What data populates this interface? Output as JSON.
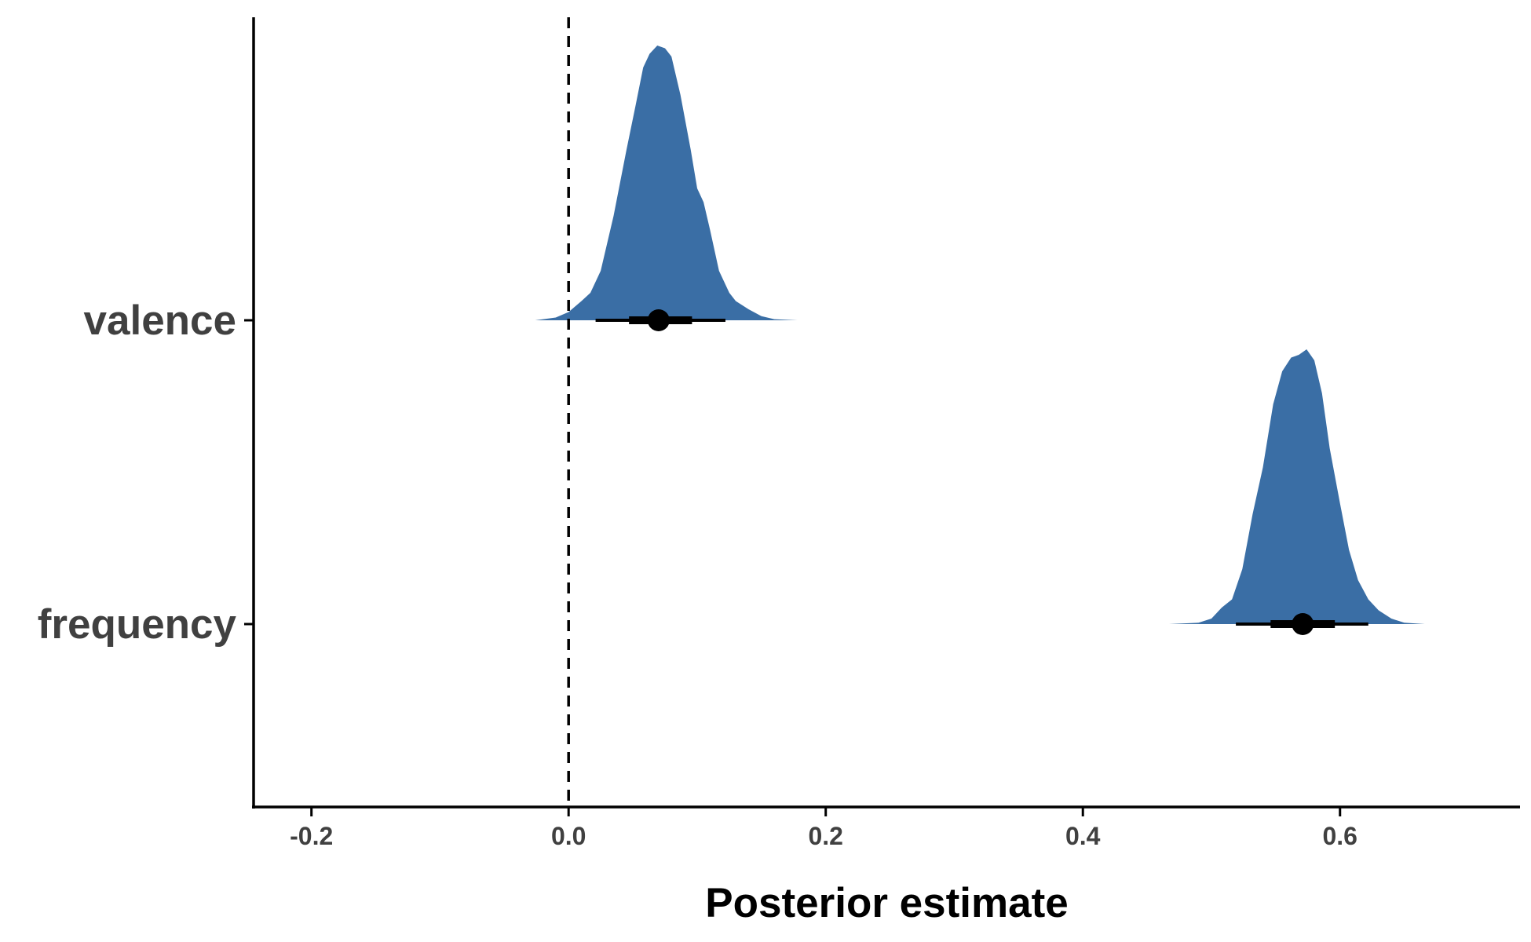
{
  "chart_data": {
    "type": "area",
    "subtype": "posterior-halfeye",
    "xlabel": "Posterior estimate",
    "ylabel": "",
    "xlim": [
      -0.245,
      0.74
    ],
    "x_ticks": [
      -0.2,
      0.0,
      0.2,
      0.4,
      0.6
    ],
    "x_tick_labels": [
      "-0.2",
      "0.0",
      "0.2",
      "0.4",
      "0.6"
    ],
    "categories": [
      "valence",
      "frequency"
    ],
    "reference_line": {
      "x": 0,
      "style": "dashed"
    },
    "grid": false,
    "legend": "none",
    "fill_color": "#3A6EA5",
    "point_color": "#000000",
    "series": [
      {
        "category": "valence",
        "median": 0.07,
        "interval_66": [
          0.047,
          0.096
        ],
        "interval_95": [
          0.021,
          0.122
        ],
        "density": [
          [
            -0.026,
            0.0
          ],
          [
            -0.01,
            0.01
          ],
          [
            0.0,
            0.03
          ],
          [
            0.01,
            0.07
          ],
          [
            0.017,
            0.1
          ],
          [
            0.025,
            0.18
          ],
          [
            0.035,
            0.38
          ],
          [
            0.045,
            0.62
          ],
          [
            0.052,
            0.78
          ],
          [
            0.058,
            0.92
          ],
          [
            0.063,
            0.97
          ],
          [
            0.069,
            1.0
          ],
          [
            0.075,
            0.99
          ],
          [
            0.08,
            0.96
          ],
          [
            0.087,
            0.82
          ],
          [
            0.095,
            0.62
          ],
          [
            0.1,
            0.48
          ],
          [
            0.105,
            0.43
          ],
          [
            0.11,
            0.33
          ],
          [
            0.117,
            0.18
          ],
          [
            0.125,
            0.1
          ],
          [
            0.13,
            0.07
          ],
          [
            0.14,
            0.04
          ],
          [
            0.15,
            0.015
          ],
          [
            0.16,
            0.004
          ],
          [
            0.178,
            0.0
          ]
        ]
      },
      {
        "category": "frequency",
        "median": 0.571,
        "interval_66": [
          0.546,
          0.596
        ],
        "interval_95": [
          0.519,
          0.622
        ],
        "density": [
          [
            0.467,
            0.0
          ],
          [
            0.49,
            0.005
          ],
          [
            0.5,
            0.02
          ],
          [
            0.508,
            0.06
          ],
          [
            0.516,
            0.09
          ],
          [
            0.524,
            0.2
          ],
          [
            0.532,
            0.4
          ],
          [
            0.54,
            0.57
          ],
          [
            0.548,
            0.8
          ],
          [
            0.555,
            0.92
          ],
          [
            0.562,
            0.97
          ],
          [
            0.568,
            0.98
          ],
          [
            0.574,
            1.0
          ],
          [
            0.58,
            0.96
          ],
          [
            0.586,
            0.84
          ],
          [
            0.592,
            0.64
          ],
          [
            0.6,
            0.44
          ],
          [
            0.607,
            0.27
          ],
          [
            0.614,
            0.16
          ],
          [
            0.622,
            0.09
          ],
          [
            0.63,
            0.05
          ],
          [
            0.64,
            0.02
          ],
          [
            0.65,
            0.005
          ],
          [
            0.666,
            0.0
          ]
        ]
      }
    ]
  }
}
